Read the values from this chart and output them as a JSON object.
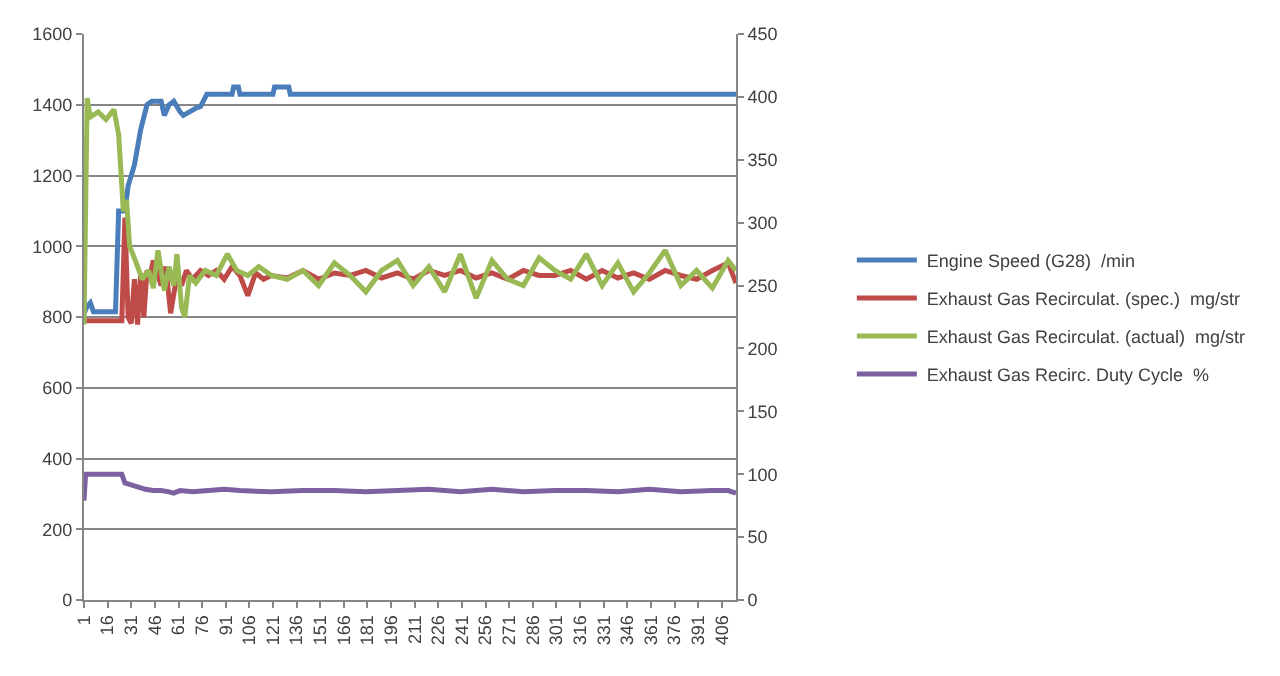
{
  "chart_data": {
    "type": "line",
    "xlim": [
      1,
      415
    ],
    "xticks": [
      1,
      16,
      31,
      46,
      61,
      76,
      91,
      106,
      121,
      136,
      151,
      166,
      181,
      196,
      211,
      226,
      241,
      256,
      271,
      286,
      301,
      316,
      331,
      346,
      361,
      376,
      391,
      406
    ],
    "ylim": [
      0,
      1600
    ],
    "yticks": [
      0,
      200,
      400,
      600,
      800,
      1000,
      1200,
      1400,
      1600
    ],
    "y2lim": [
      0,
      450
    ],
    "y2ticks": [
      0,
      50,
      100,
      150,
      200,
      250,
      300,
      350,
      400,
      450
    ],
    "grid": "y",
    "legend": "right",
    "marker": "none",
    "line_style": "solid",
    "series": [
      {
        "name": "Engine Speed (G28)  /min",
        "color": "#4a7ebb",
        "x": [
          1,
          3,
          5,
          7,
          21,
          23,
          27,
          29,
          33,
          37,
          41,
          44,
          50,
          52,
          55,
          58,
          62,
          64,
          68,
          72,
          75,
          79,
          95,
          96,
          99,
          100,
          121,
          122,
          131,
          132,
          415
        ],
        "values": [
          810,
          830,
          840,
          815,
          815,
          1100,
          1100,
          1170,
          1230,
          1330,
          1400,
          1410,
          1410,
          1370,
          1400,
          1410,
          1380,
          1370,
          1380,
          1390,
          1395,
          1430,
          1430,
          1450,
          1450,
          1430,
          1430,
          1450,
          1450,
          1430,
          1430
        ]
      },
      {
        "name": "Exhaust Gas Recirculat. (spec.)  mg/str",
        "color": "#be4b48",
        "axis": "y2",
        "x": [
          1,
          10,
          20,
          25,
          27,
          29,
          31,
          33,
          35,
          37,
          39,
          41,
          43,
          45,
          47,
          50,
          53,
          56,
          60,
          63,
          66,
          70,
          75,
          80,
          85,
          90,
          95,
          100,
          105,
          110,
          115,
          120,
          130,
          140,
          150,
          160,
          170,
          180,
          190,
          200,
          210,
          220,
          230,
          240,
          250,
          260,
          270,
          280,
          290,
          300,
          310,
          320,
          330,
          340,
          350,
          360,
          370,
          380,
          390,
          400,
          410,
          415
        ],
        "values": [
          222,
          222,
          222,
          222,
          304,
          225,
          220,
          255,
          219,
          260,
          225,
          262,
          258,
          270,
          262,
          250,
          265,
          228,
          258,
          250,
          262,
          255,
          262,
          258,
          262,
          255,
          265,
          258,
          242,
          260,
          255,
          258,
          256,
          262,
          255,
          260,
          258,
          262,
          256,
          260,
          255,
          262,
          258,
          262,
          256,
          260,
          255,
          262,
          258,
          258,
          262,
          255,
          262,
          256,
          260,
          255,
          262,
          258,
          255,
          262,
          268,
          252
        ]
      },
      {
        "name": "Exhaust Gas Recirculat. (actual)  mg/str",
        "color": "#98b954",
        "axis": "y2",
        "x": [
          1,
          3,
          5,
          10,
          15,
          20,
          23,
          26,
          28,
          30,
          32,
          35,
          38,
          42,
          45,
          48,
          52,
          55,
          58,
          60,
          63,
          65,
          68,
          72,
          78,
          85,
          92,
          98,
          105,
          112,
          120,
          130,
          140,
          150,
          160,
          170,
          180,
          190,
          200,
          210,
          220,
          230,
          240,
          250,
          260,
          270,
          280,
          290,
          300,
          310,
          320,
          330,
          340,
          350,
          360,
          370,
          380,
          390,
          400,
          410,
          415
        ],
        "values": [
          219,
          399,
          384,
          388,
          382,
          390,
          370,
          309,
          318,
          281,
          275,
          265,
          255,
          262,
          248,
          278,
          246,
          265,
          250,
          275,
          232,
          225,
          258,
          252,
          262,
          258,
          275,
          262,
          258,
          265,
          258,
          255,
          262,
          250,
          268,
          258,
          245,
          262,
          270,
          250,
          265,
          245,
          275,
          240,
          270,
          255,
          250,
          272,
          262,
          255,
          275,
          250,
          268,
          245,
          260,
          278,
          250,
          262,
          248,
          270,
          262
        ]
      },
      {
        "name": "Exhaust Gas Recirc. Duty Cycle  %",
        "color": "#7d60a0",
        "axis": "y2",
        "x": [
          1,
          2,
          5,
          10,
          20,
          25,
          27,
          30,
          35,
          40,
          45,
          50,
          55,
          58,
          62,
          70,
          80,
          90,
          100,
          120,
          140,
          160,
          180,
          200,
          220,
          240,
          260,
          280,
          300,
          320,
          340,
          360,
          380,
          400,
          410,
          415
        ],
        "values": [
          79,
          100,
          100,
          100,
          100,
          100,
          93,
          92,
          90,
          88,
          87,
          87,
          86,
          85,
          87,
          86,
          87,
          88,
          87,
          86,
          87,
          87,
          86,
          87,
          88,
          86,
          88,
          86,
          87,
          87,
          86,
          88,
          86,
          87,
          87,
          85
        ]
      }
    ]
  }
}
